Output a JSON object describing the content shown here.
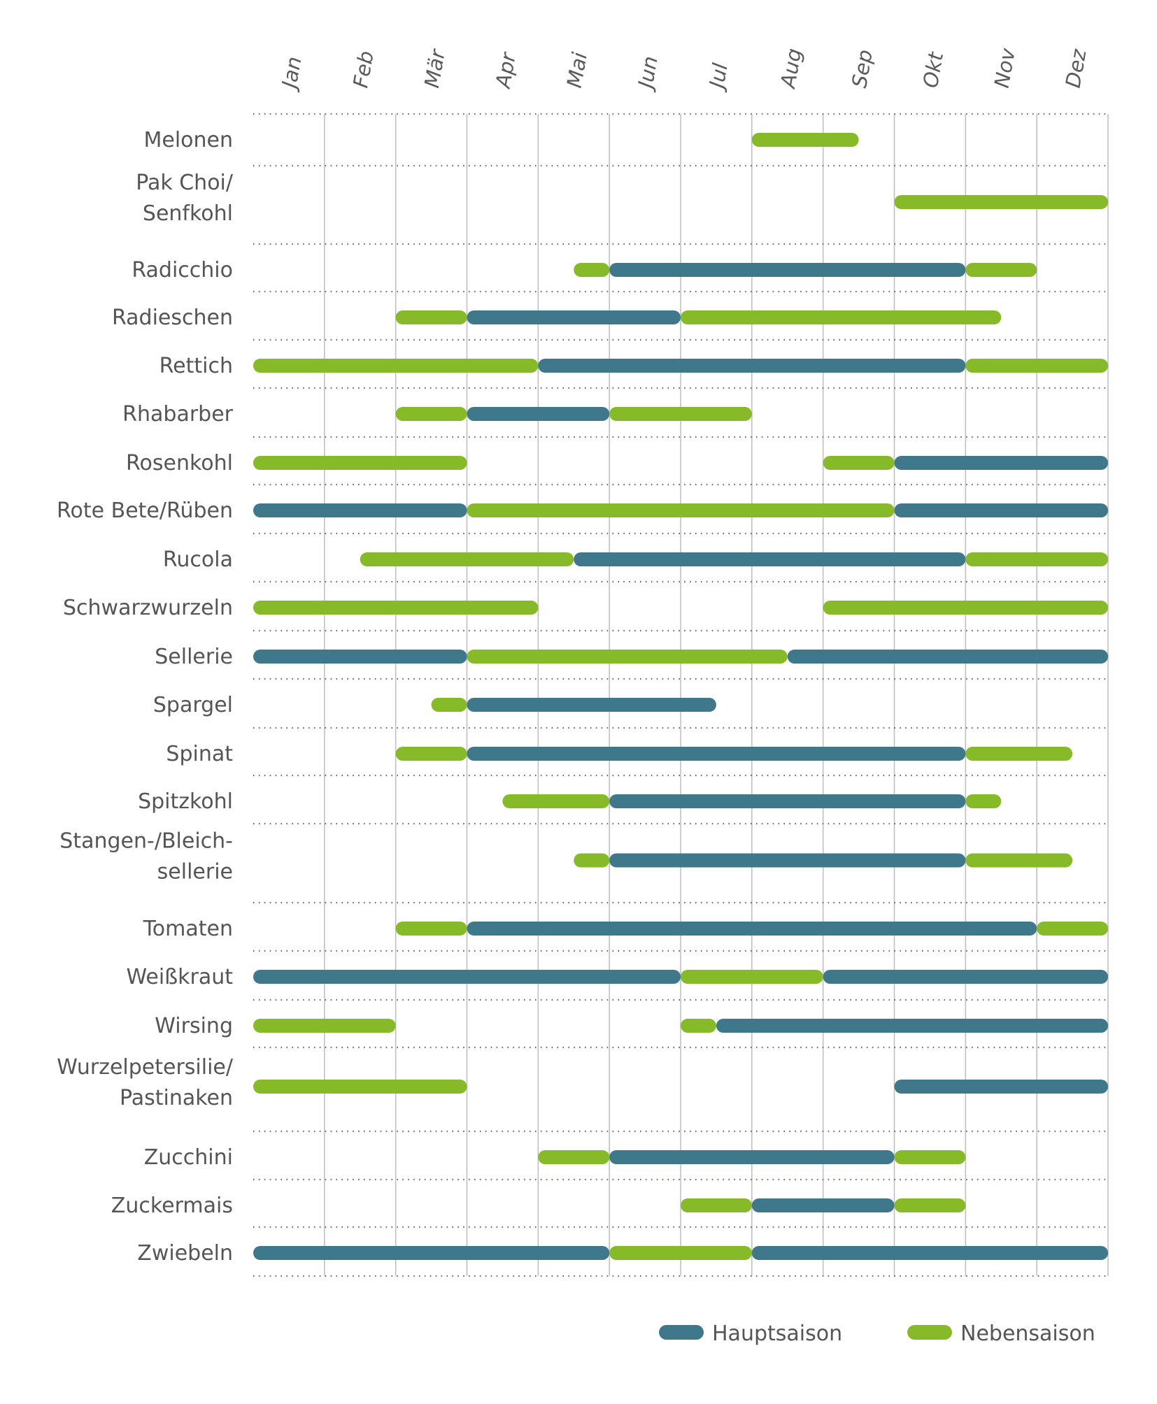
{
  "chart_data": {
    "type": "gantt",
    "title": "",
    "xlabel": "",
    "ylabel": "",
    "months": [
      "Jan",
      "Feb",
      "Mär",
      "Apr",
      "Mai",
      "Jun",
      "Jul",
      "Aug",
      "Sep",
      "Okt",
      "Nov",
      "Dez"
    ],
    "x_range_months": [
      0,
      12
    ],
    "colors": {
      "Hauptsaison": "#3f788b",
      "Nebensaison": "#86ba28"
    },
    "legend": {
      "placement": "bottom-right",
      "entries": [
        {
          "name": "Hauptsaison",
          "color": "#3f788b"
        },
        {
          "name": "Nebensaison",
          "color": "#86ba28"
        }
      ]
    },
    "rows": [
      {
        "label": [
          "Melonen"
        ],
        "segments": [
          {
            "type": "Nebensaison",
            "start": 7,
            "end": 8.5
          }
        ]
      },
      {
        "label": [
          "Pak Choi/",
          "Senfkohl"
        ],
        "segments": [
          {
            "type": "Nebensaison",
            "start": 9,
            "end": 12
          }
        ]
      },
      {
        "label": [
          "Radicchio"
        ],
        "segments": [
          {
            "type": "Nebensaison",
            "start": 4.5,
            "end": 5
          },
          {
            "type": "Hauptsaison",
            "start": 5,
            "end": 10
          },
          {
            "type": "Nebensaison",
            "start": 10,
            "end": 11
          }
        ]
      },
      {
        "label": [
          "Radieschen"
        ],
        "segments": [
          {
            "type": "Nebensaison",
            "start": 2,
            "end": 3
          },
          {
            "type": "Hauptsaison",
            "start": 3,
            "end": 6
          },
          {
            "type": "Nebensaison",
            "start": 6,
            "end": 10.5
          }
        ]
      },
      {
        "label": [
          "Rettich"
        ],
        "segments": [
          {
            "type": "Nebensaison",
            "start": 0,
            "end": 4
          },
          {
            "type": "Hauptsaison",
            "start": 4,
            "end": 10
          },
          {
            "type": "Nebensaison",
            "start": 10,
            "end": 12
          }
        ]
      },
      {
        "label": [
          "Rhabarber"
        ],
        "segments": [
          {
            "type": "Nebensaison",
            "start": 2,
            "end": 3
          },
          {
            "type": "Hauptsaison",
            "start": 3,
            "end": 5
          },
          {
            "type": "Nebensaison",
            "start": 5,
            "end": 7
          }
        ]
      },
      {
        "label": [
          "Rosenkohl"
        ],
        "segments": [
          {
            "type": "Nebensaison",
            "start": 0,
            "end": 3
          },
          {
            "type": "Nebensaison",
            "start": 8,
            "end": 9
          },
          {
            "type": "Hauptsaison",
            "start": 9,
            "end": 12
          }
        ]
      },
      {
        "label": [
          "Rote Bete/Rüben"
        ],
        "segments": [
          {
            "type": "Hauptsaison",
            "start": 0,
            "end": 3
          },
          {
            "type": "Nebensaison",
            "start": 3,
            "end": 9
          },
          {
            "type": "Hauptsaison",
            "start": 9,
            "end": 12
          }
        ]
      },
      {
        "label": [
          "Rucola"
        ],
        "segments": [
          {
            "type": "Nebensaison",
            "start": 1.5,
            "end": 4.5
          },
          {
            "type": "Hauptsaison",
            "start": 4.5,
            "end": 10
          },
          {
            "type": "Nebensaison",
            "start": 10,
            "end": 12
          }
        ]
      },
      {
        "label": [
          "Schwarzwurzeln"
        ],
        "segments": [
          {
            "type": "Nebensaison",
            "start": 0,
            "end": 4
          },
          {
            "type": "Nebensaison",
            "start": 8,
            "end": 12
          }
        ]
      },
      {
        "label": [
          "Sellerie"
        ],
        "segments": [
          {
            "type": "Hauptsaison",
            "start": 0,
            "end": 3
          },
          {
            "type": "Nebensaison",
            "start": 3,
            "end": 7.5
          },
          {
            "type": "Hauptsaison",
            "start": 7.5,
            "end": 12
          }
        ]
      },
      {
        "label": [
          "Spargel"
        ],
        "segments": [
          {
            "type": "Nebensaison",
            "start": 2.5,
            "end": 3
          },
          {
            "type": "Hauptsaison",
            "start": 3,
            "end": 6.5
          }
        ]
      },
      {
        "label": [
          "Spinat"
        ],
        "segments": [
          {
            "type": "Nebensaison",
            "start": 2,
            "end": 3
          },
          {
            "type": "Hauptsaison",
            "start": 3,
            "end": 10
          },
          {
            "type": "Nebensaison",
            "start": 10,
            "end": 11.5
          }
        ]
      },
      {
        "label": [
          "Spitzkohl"
        ],
        "segments": [
          {
            "type": "Nebensaison",
            "start": 3.5,
            "end": 5
          },
          {
            "type": "Hauptsaison",
            "start": 5,
            "end": 10
          },
          {
            "type": "Nebensaison",
            "start": 10,
            "end": 10.5
          }
        ]
      },
      {
        "label": [
          "Stangen-/Bleich-",
          "sellerie"
        ],
        "segments": [
          {
            "type": "Nebensaison",
            "start": 4.5,
            "end": 5
          },
          {
            "type": "Hauptsaison",
            "start": 5,
            "end": 10
          },
          {
            "type": "Nebensaison",
            "start": 10,
            "end": 11.5
          }
        ]
      },
      {
        "label": [
          "Tomaten"
        ],
        "segments": [
          {
            "type": "Nebensaison",
            "start": 2,
            "end": 3
          },
          {
            "type": "Hauptsaison",
            "start": 3,
            "end": 11
          },
          {
            "type": "Nebensaison",
            "start": 11,
            "end": 12
          }
        ]
      },
      {
        "label": [
          "Weißkraut"
        ],
        "segments": [
          {
            "type": "Hauptsaison",
            "start": 0,
            "end": 6
          },
          {
            "type": "Nebensaison",
            "start": 6,
            "end": 8
          },
          {
            "type": "Hauptsaison",
            "start": 8,
            "end": 12
          }
        ]
      },
      {
        "label": [
          "Wirsing"
        ],
        "segments": [
          {
            "type": "Nebensaison",
            "start": 0,
            "end": 2
          },
          {
            "type": "Nebensaison",
            "start": 6,
            "end": 6.5
          },
          {
            "type": "Hauptsaison",
            "start": 6.5,
            "end": 12
          }
        ]
      },
      {
        "label": [
          "Wurzelpetersilie/",
          "Pastinaken"
        ],
        "segments": [
          {
            "type": "Nebensaison",
            "start": 0,
            "end": 3
          },
          {
            "type": "Hauptsaison",
            "start": 9,
            "end": 12
          }
        ]
      },
      {
        "label": [
          "Zucchini"
        ],
        "segments": [
          {
            "type": "Nebensaison",
            "start": 4,
            "end": 5
          },
          {
            "type": "Hauptsaison",
            "start": 5,
            "end": 9
          },
          {
            "type": "Nebensaison",
            "start": 9,
            "end": 10
          }
        ]
      },
      {
        "label": [
          "Zuckermais"
        ],
        "segments": [
          {
            "type": "Nebensaison",
            "start": 6,
            "end": 7
          },
          {
            "type": "Hauptsaison",
            "start": 7,
            "end": 9
          },
          {
            "type": "Nebensaison",
            "start": 9,
            "end": 10
          }
        ]
      },
      {
        "label": [
          "Zwiebeln"
        ],
        "segments": [
          {
            "type": "Hauptsaison",
            "start": 0,
            "end": 5
          },
          {
            "type": "Nebensaison",
            "start": 5,
            "end": 7
          },
          {
            "type": "Hauptsaison",
            "start": 7,
            "end": 12
          }
        ]
      }
    ]
  }
}
